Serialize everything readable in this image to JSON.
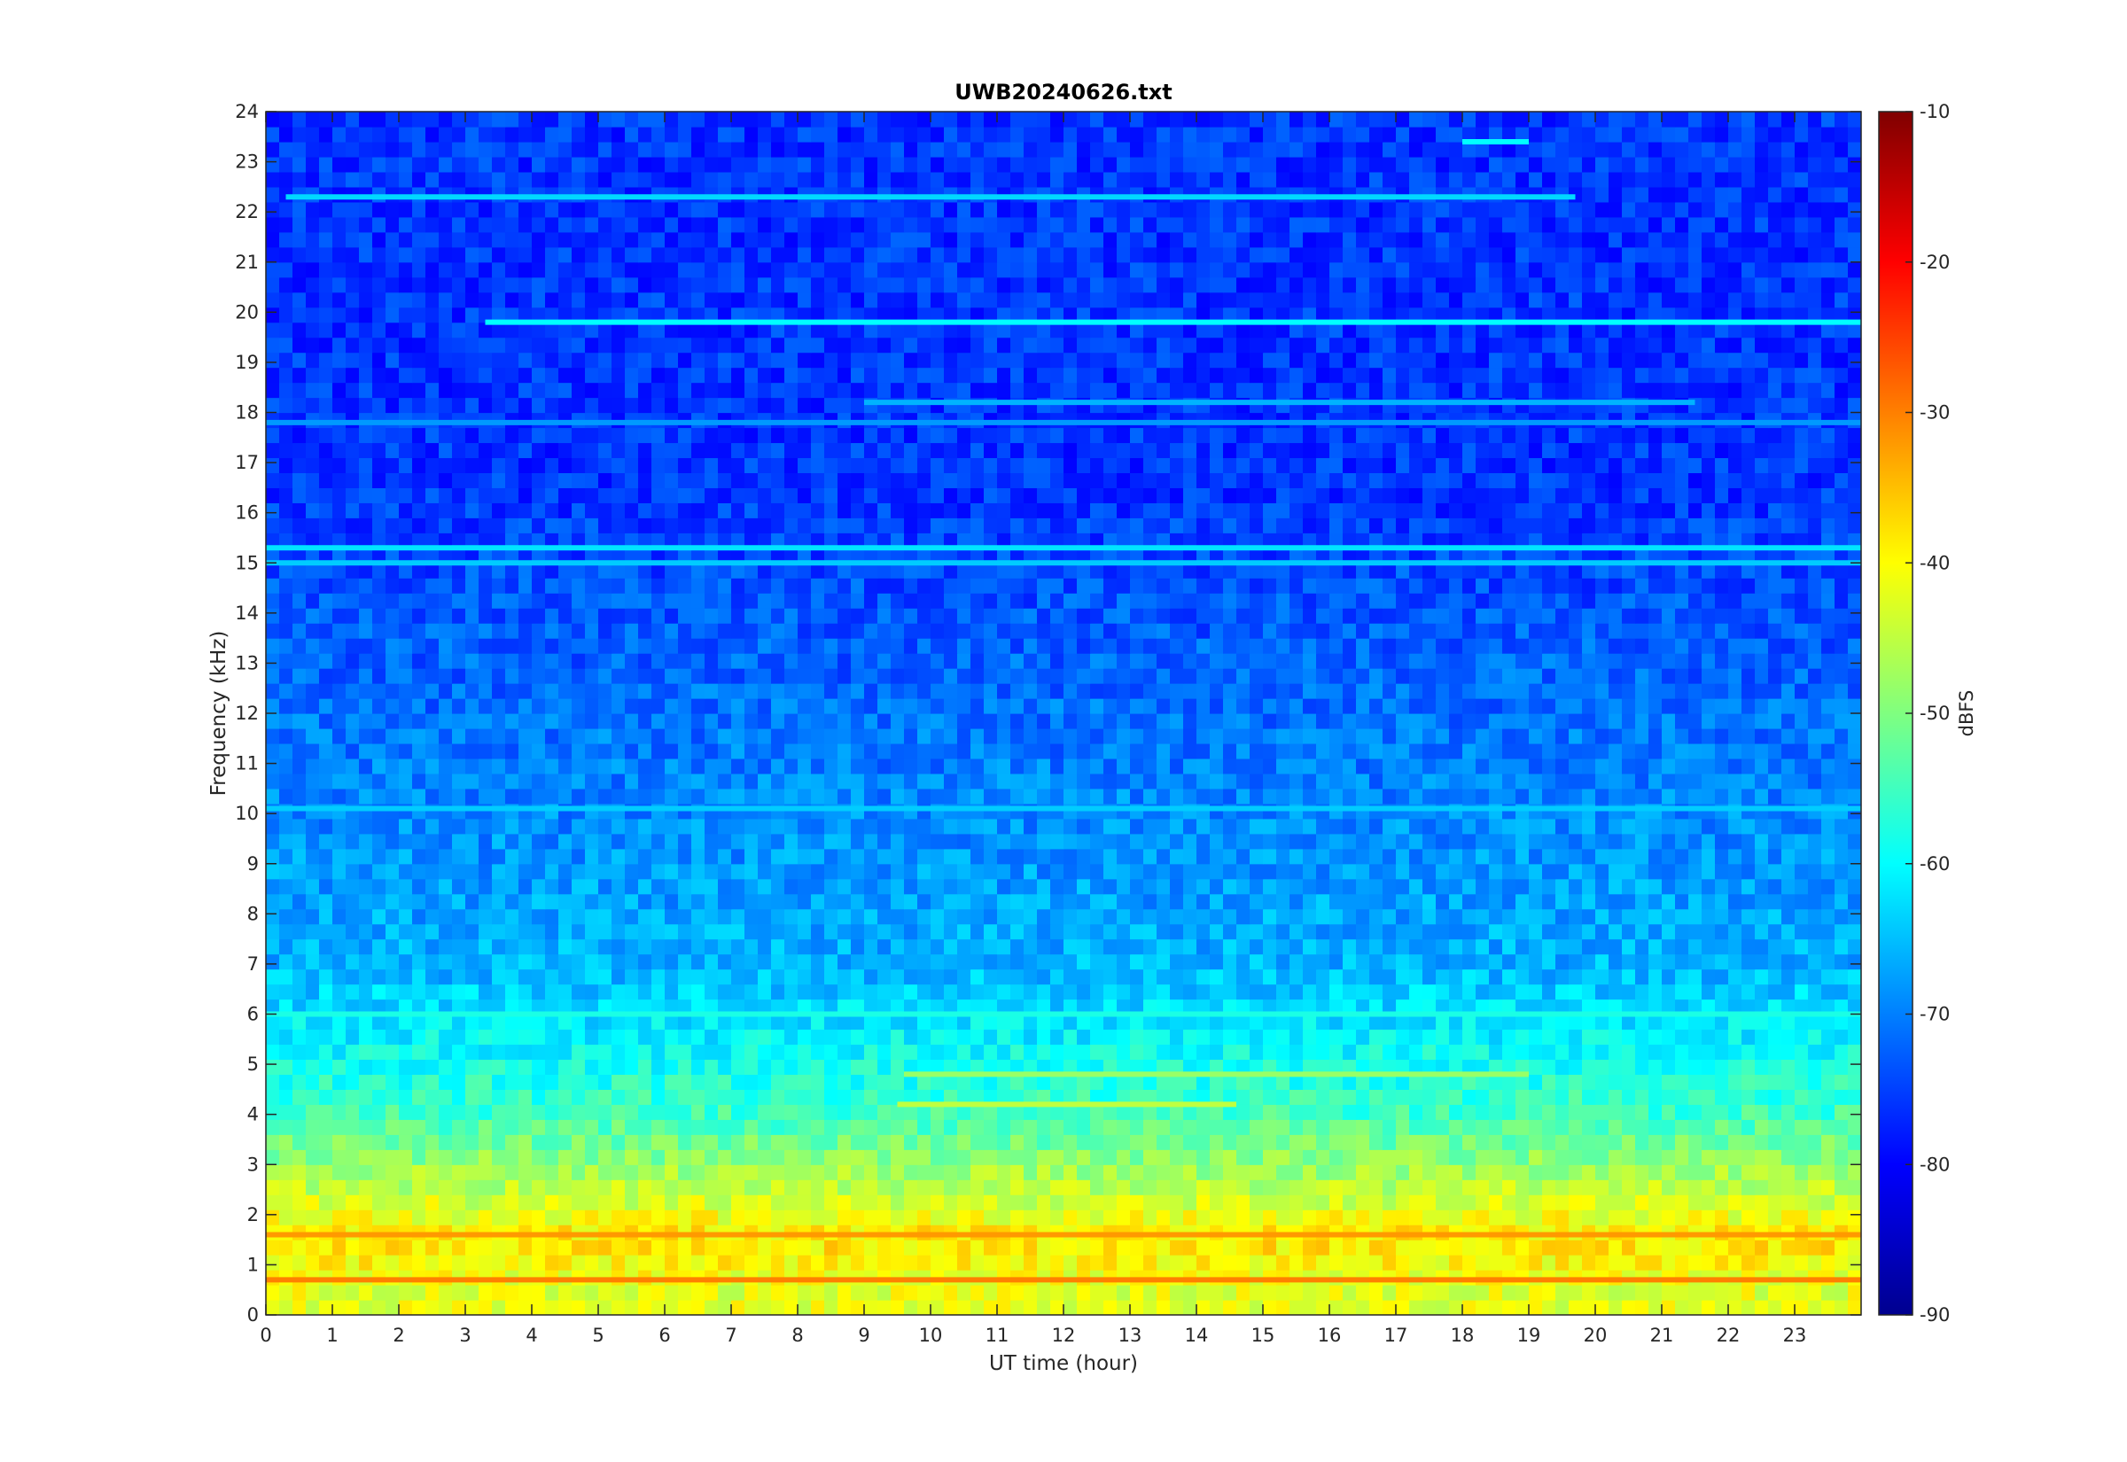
{
  "chart_data": {
    "type": "heatmap",
    "title": "UWB20240626.txt",
    "xlabel": "UT time (hour)",
    "ylabel": "Frequency (kHz)",
    "xlim": [
      0,
      24
    ],
    "ylim": [
      0,
      24
    ],
    "x_ticks": [
      "0",
      "1",
      "2",
      "3",
      "4",
      "5",
      "6",
      "7",
      "8",
      "9",
      "10",
      "11",
      "12",
      "13",
      "14",
      "15",
      "16",
      "17",
      "18",
      "19",
      "20",
      "21",
      "22",
      "23"
    ],
    "y_ticks": [
      "0",
      "1",
      "2",
      "3",
      "4",
      "5",
      "6",
      "7",
      "8",
      "9",
      "10",
      "11",
      "12",
      "13",
      "14",
      "15",
      "16",
      "17",
      "18",
      "19",
      "20",
      "21",
      "22",
      "23",
      "24"
    ],
    "colorbar": {
      "label": "dBFS",
      "range": [
        -90,
        -10
      ],
      "ticks": [
        "-90",
        "-80",
        "-70",
        "-60",
        "-50",
        "-40",
        "-30",
        "-20",
        "-10"
      ],
      "colormap": "jet"
    },
    "grid": false,
    "background_level_dBFS": {
      "0-1 kHz": -42,
      "1-2 kHz": -38,
      "2-3 kHz": -45,
      "3-5 kHz": -55,
      "5-9 kHz": -66,
      "9-24 kHz": -76
    },
    "features": [
      {
        "kind": "horizontal line",
        "freq_kHz": 19.8,
        "start_hour": 3.3,
        "end_hour": 24,
        "level_dBFS": -60
      },
      {
        "kind": "horizontal line",
        "freq_kHz": 22.3,
        "start_hour": 0.3,
        "end_hour": 19.7,
        "level_dBFS": -63
      },
      {
        "kind": "horizontal line",
        "freq_kHz": 15.3,
        "start_hour": 0,
        "end_hour": 24,
        "level_dBFS": -62
      },
      {
        "kind": "horizontal line",
        "freq_kHz": 15.0,
        "start_hour": 0,
        "end_hour": 24,
        "level_dBFS": -64
      },
      {
        "kind": "horizontal line",
        "freq_kHz": 10.1,
        "start_hour": 0,
        "end_hour": 24,
        "level_dBFS": -64
      },
      {
        "kind": "horizontal line",
        "freq_kHz": 18.2,
        "start_hour": 9,
        "end_hour": 21.5,
        "level_dBFS": -66
      },
      {
        "kind": "horizontal line",
        "freq_kHz": 17.8,
        "start_hour": 0,
        "end_hour": 24,
        "level_dBFS": -68
      },
      {
        "kind": "horizontal line",
        "freq_kHz": 23.4,
        "start_hour": 18,
        "end_hour": 19,
        "level_dBFS": -60
      },
      {
        "kind": "horizontal line",
        "freq_kHz": 4.2,
        "start_hour": 9.5,
        "end_hour": 14.6,
        "level_dBFS": -45
      },
      {
        "kind": "horizontal line",
        "freq_kHz": 4.8,
        "start_hour": 9.6,
        "end_hour": 19,
        "level_dBFS": -48
      },
      {
        "kind": "horizontal line",
        "freq_kHz": 6.0,
        "start_hour": 0,
        "end_hour": 24,
        "level_dBFS": -58
      },
      {
        "kind": "horizontal line",
        "freq_kHz": 1.6,
        "start_hour": 0,
        "end_hour": 24,
        "level_dBFS": -32
      },
      {
        "kind": "horizontal line",
        "freq_kHz": 0.7,
        "start_hour": 0,
        "end_hour": 24,
        "level_dBFS": -30
      }
    ]
  }
}
